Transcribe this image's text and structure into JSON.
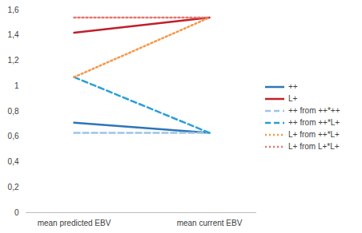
{
  "chart_data": {
    "type": "line",
    "categories": [
      "mean predicted EBV",
      "mean current EBV"
    ],
    "series": [
      {
        "name": "++",
        "color": "#2e75b6",
        "line_style": "solid",
        "values": [
          0.71,
          0.63
        ]
      },
      {
        "name": "L+",
        "color": "#c0202a",
        "line_style": "solid",
        "values": [
          1.42,
          1.54
        ]
      },
      {
        "name": "++ from ++*++",
        "color": "#9dc3e6",
        "line_style": "dashed",
        "values": [
          0.63,
          0.63
        ]
      },
      {
        "name": "++ from ++*L+",
        "color": "#2a9fd8",
        "line_style": "dashed",
        "values": [
          1.07,
          0.63
        ]
      },
      {
        "name": "L+ from ++*L+",
        "color": "#f79646",
        "line_style": "dotted",
        "values": [
          1.07,
          1.54
        ]
      },
      {
        "name": "L+ from L+*L+",
        "color": "#e8736c",
        "line_style": "dotted",
        "values": [
          1.54,
          1.54
        ]
      }
    ],
    "ylim": [
      0,
      1.6
    ],
    "yticks": [
      0,
      {
        "value": 0.2,
        "label": "0,2"
      },
      {
        "value": 0.4,
        "label": "0,4"
      },
      {
        "value": 0.6,
        "label": "0,6"
      },
      {
        "value": 0.8,
        "label": "0,8"
      },
      1,
      {
        "value": 1.2,
        "label": "1,2"
      },
      {
        "value": 1.4,
        "label": "1,4"
      },
      {
        "value": 1.6,
        "label": "1,6"
      }
    ],
    "grid": false,
    "legend": "right"
  }
}
